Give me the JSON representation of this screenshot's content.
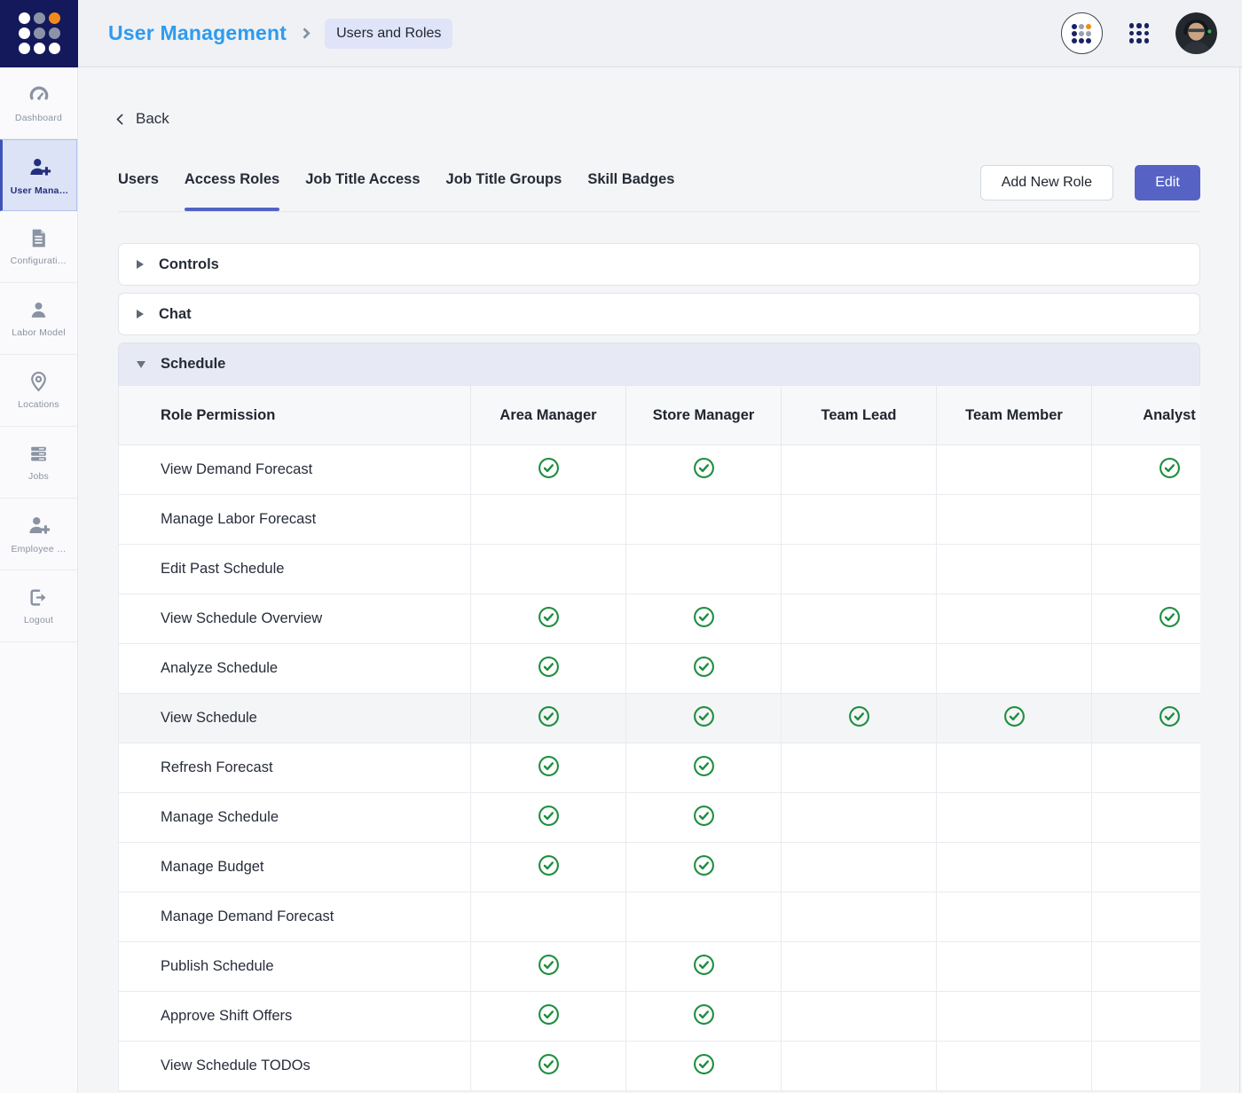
{
  "header": {
    "title": "User Management",
    "breadcrumb": "Users and Roles"
  },
  "sidebar": {
    "items": [
      {
        "label": "Dashboard",
        "active": false
      },
      {
        "label": "User Mana…",
        "active": true
      },
      {
        "label": "Configurati…",
        "active": false
      },
      {
        "label": "Labor Model",
        "active": false
      },
      {
        "label": "Locations",
        "active": false
      },
      {
        "label": "Jobs",
        "active": false
      },
      {
        "label": "Employee …",
        "active": false
      },
      {
        "label": "Logout",
        "active": false
      }
    ]
  },
  "toolbar": {
    "back_label": "Back",
    "add_role_label": "Add New Role",
    "edit_label": "Edit"
  },
  "tabs": {
    "active_index": 1,
    "items": [
      {
        "label": "Users"
      },
      {
        "label": "Access Roles"
      },
      {
        "label": "Job Title Access"
      },
      {
        "label": "Job Title Groups"
      },
      {
        "label": "Skill Badges"
      }
    ]
  },
  "sections": [
    {
      "label": "Controls",
      "expanded": false
    },
    {
      "label": "Chat",
      "expanded": false
    },
    {
      "label": "Schedule",
      "expanded": true
    }
  ],
  "table": {
    "columns": [
      "Role Permission",
      "Area Manager",
      "Store Manager",
      "Team Lead",
      "Team Member",
      "Analyst"
    ],
    "rows": [
      {
        "label": "View Demand Forecast",
        "checks": [
          1,
          1,
          0,
          0,
          1
        ],
        "highlighted": false
      },
      {
        "label": "Manage Labor Forecast",
        "checks": [
          0,
          0,
          0,
          0,
          0
        ],
        "highlighted": false
      },
      {
        "label": "Edit Past Schedule",
        "checks": [
          0,
          0,
          0,
          0,
          0
        ],
        "highlighted": false
      },
      {
        "label": "View Schedule Overview",
        "checks": [
          1,
          1,
          0,
          0,
          1
        ],
        "highlighted": false
      },
      {
        "label": "Analyze Schedule",
        "checks": [
          1,
          1,
          0,
          0,
          0
        ],
        "highlighted": false
      },
      {
        "label": "View Schedule",
        "checks": [
          1,
          1,
          1,
          1,
          1
        ],
        "highlighted": true
      },
      {
        "label": "Refresh Forecast",
        "checks": [
          1,
          1,
          0,
          0,
          0
        ],
        "highlighted": false
      },
      {
        "label": "Manage Schedule",
        "checks": [
          1,
          1,
          0,
          0,
          0
        ],
        "highlighted": false
      },
      {
        "label": "Manage Budget",
        "checks": [
          1,
          1,
          0,
          0,
          0
        ],
        "highlighted": false
      },
      {
        "label": "Manage Demand Forecast",
        "checks": [
          0,
          0,
          0,
          0,
          0
        ],
        "highlighted": false
      },
      {
        "label": "Publish Schedule",
        "checks": [
          1,
          1,
          0,
          0,
          0
        ],
        "highlighted": false
      },
      {
        "label": "Approve Shift Offers",
        "checks": [
          1,
          1,
          0,
          0,
          0
        ],
        "highlighted": false
      },
      {
        "label": "View Schedule TODOs",
        "checks": [
          1,
          1,
          0,
          0,
          0
        ],
        "highlighted": false
      }
    ]
  },
  "colors": {
    "title_link": "#2D9BF0",
    "primary_button": "#5663C5",
    "tab_underline": "#5263C4",
    "check_green": "#1E8E3E",
    "active_nav": "#242F7D",
    "logo_navy": "#13195A",
    "logo_orange": "#F28A1C"
  }
}
